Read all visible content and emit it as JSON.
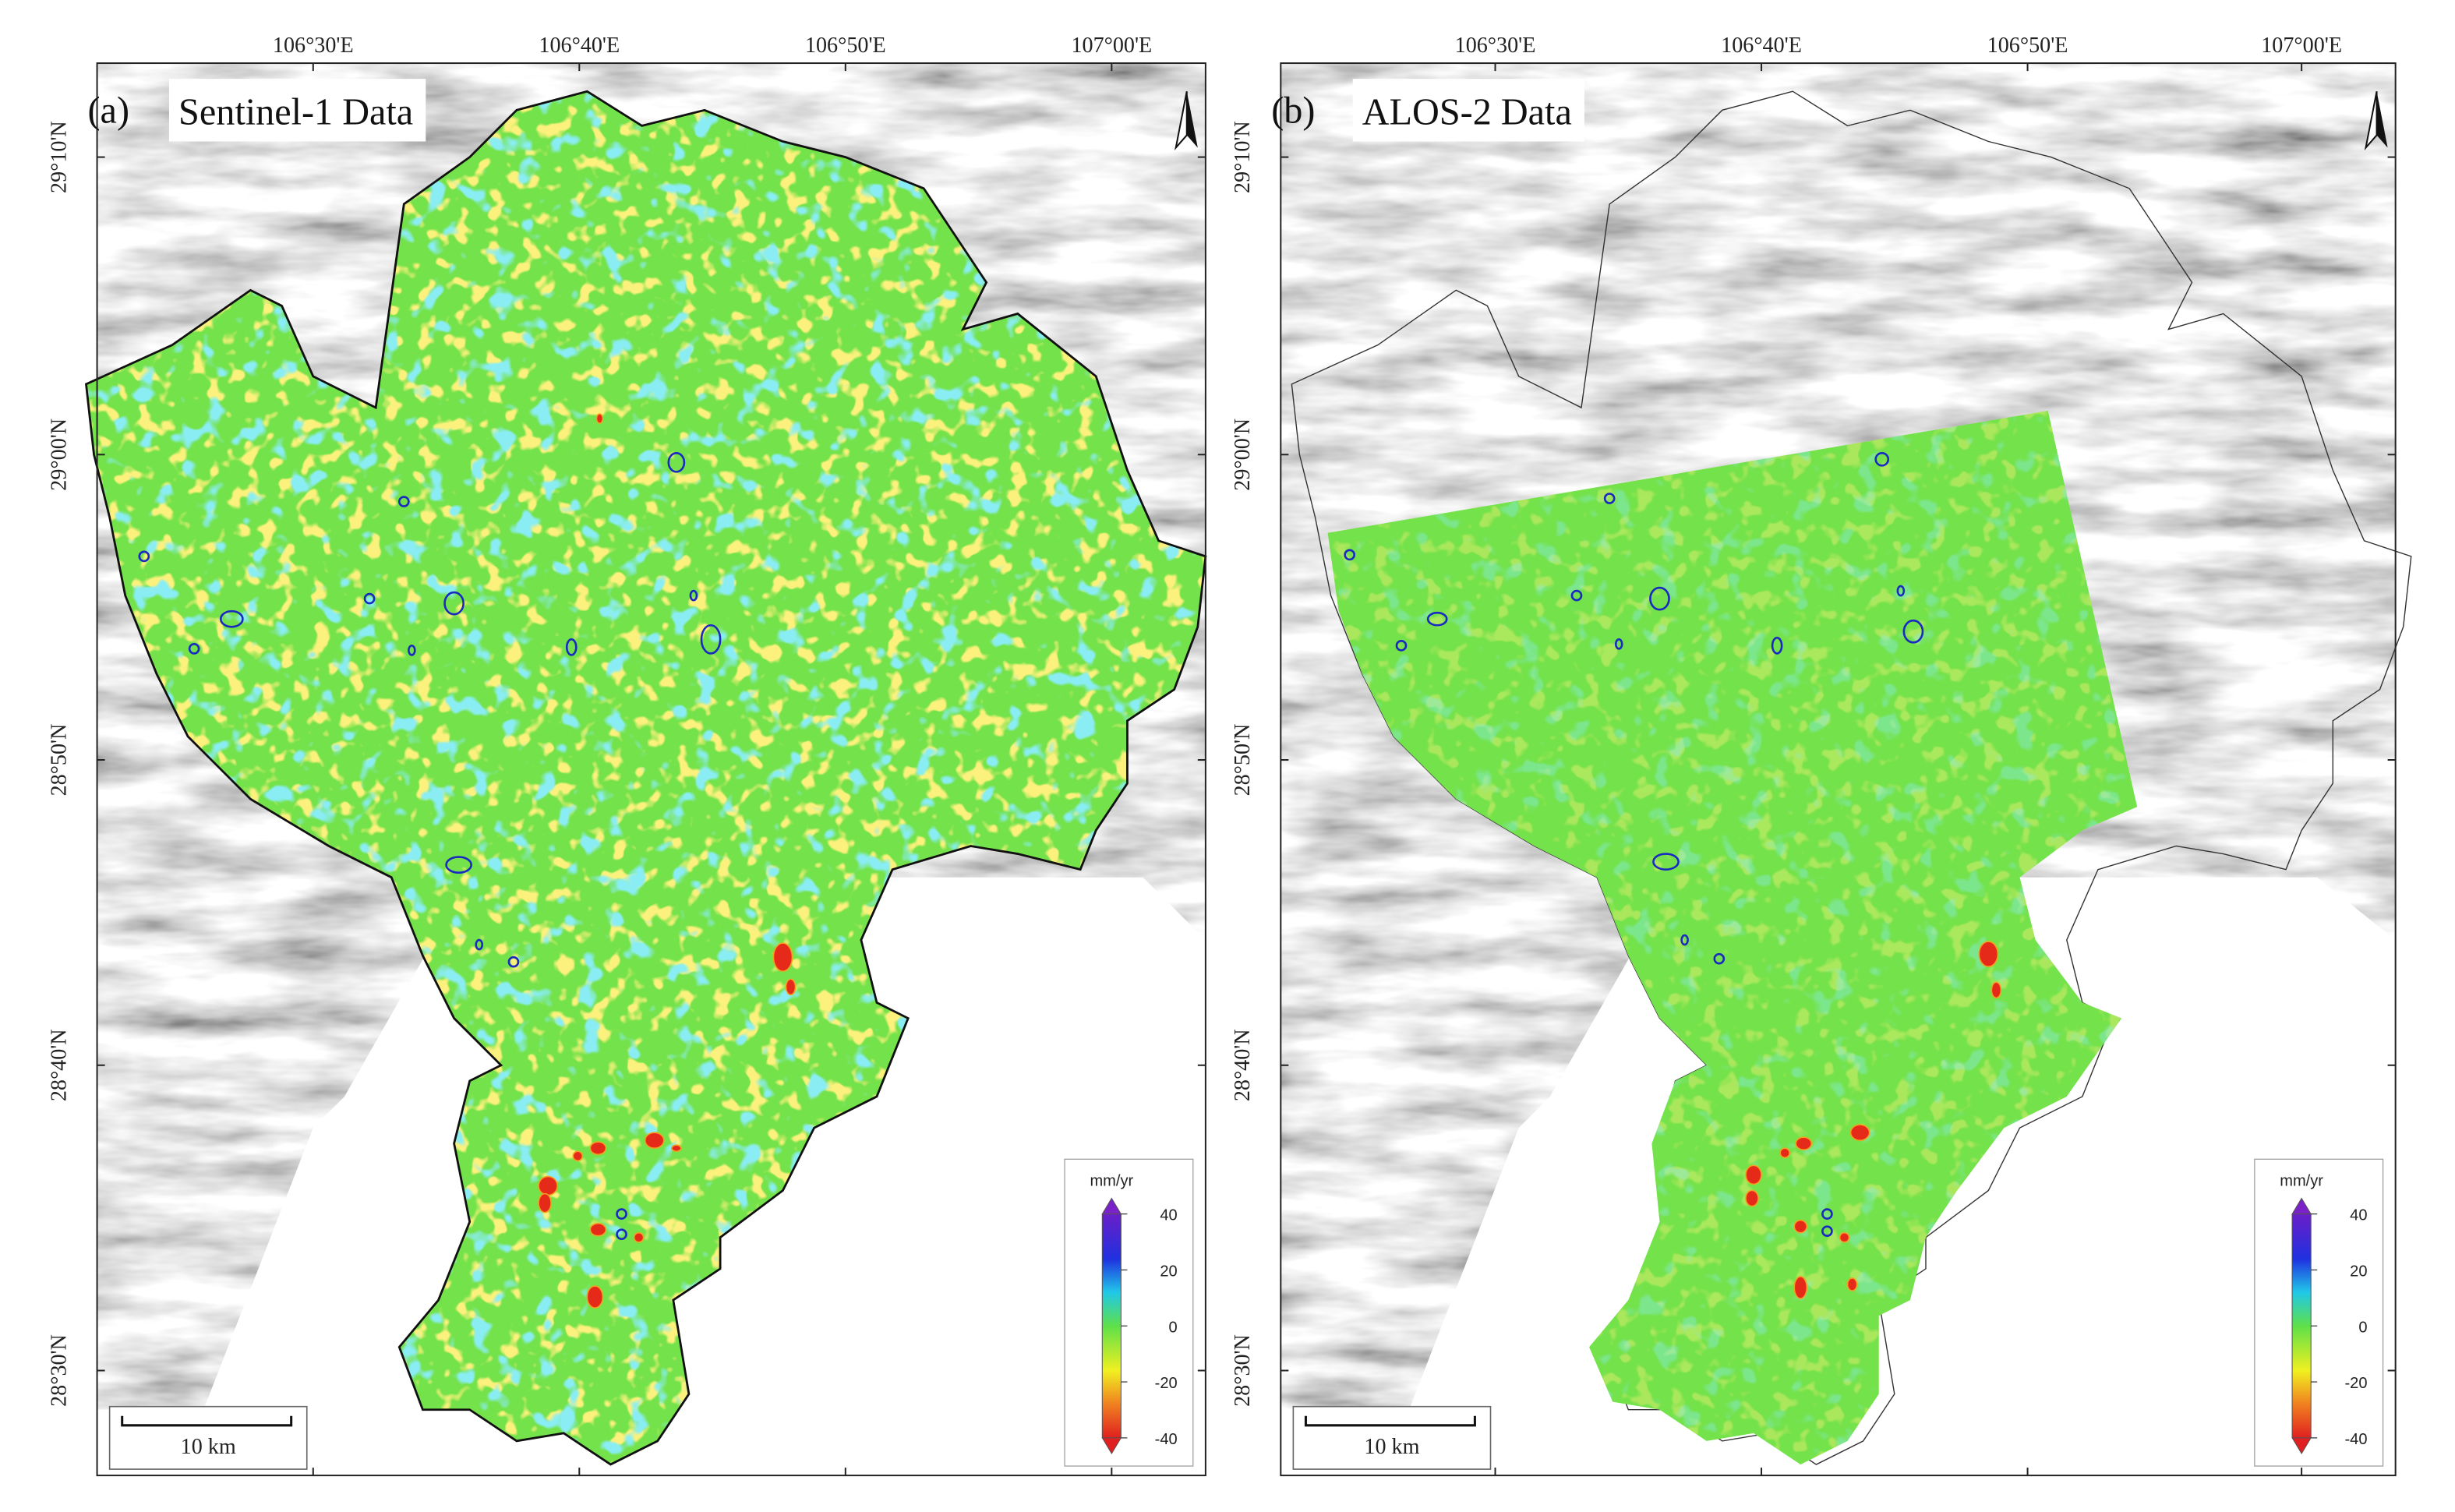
{
  "panels": [
    {
      "label": "(a)",
      "title": "Sentinel-1 Data",
      "lon_ticks": [
        "106°30'E",
        "106°40'E",
        "106°50'E",
        "107°00'E"
      ],
      "lat_ticks": [
        "29°10'N",
        "29°00'N",
        "28°50'N",
        "28°40'N",
        "28°30'N"
      ],
      "colorbar": {
        "unit": "mm/yr",
        "ticks": [
          40,
          20,
          0,
          -20,
          -40
        ]
      },
      "scale_bar": "10 km"
    },
    {
      "label": "(b)",
      "title": "ALOS-2 Data",
      "lon_ticks": [
        "106°30'E",
        "106°40'E",
        "106°50'E",
        "107°00'E"
      ],
      "lat_ticks": [
        "29°10'N",
        "29°00'N",
        "28°50'N",
        "28°40'N",
        "28°30'N"
      ],
      "colorbar": {
        "unit": "mm/yr",
        "ticks": [
          40,
          20,
          0,
          -20,
          -40
        ]
      },
      "scale_bar": "10 km"
    }
  ]
}
